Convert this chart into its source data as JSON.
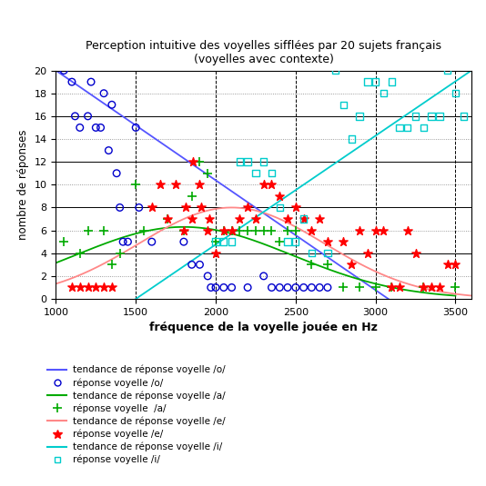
{
  "title_line1": "Perception intuitive des voyelles sifflées par 20 sujets français",
  "title_line2": "(voyelles avec contexte)",
  "xlabel": "fréquence de la voyelle jouée en Hz",
  "ylabel": "nombre de réponses",
  "xlim": [
    1000,
    3600
  ],
  "ylim": [
    0,
    20
  ],
  "xticks": [
    1000,
    1500,
    2000,
    2500,
    3000,
    3500
  ],
  "yticks": [
    0,
    2,
    4,
    6,
    8,
    10,
    12,
    14,
    16,
    18,
    20
  ],
  "color_o_line": "#5555ff",
  "color_o_pts": "#0000cc",
  "color_a": "#00aa00",
  "color_e_line": "#ff8888",
  "color_e_pts": "#ff0000",
  "color_i": "#00cccc",
  "scatter_o_x": [
    1050,
    1100,
    1120,
    1150,
    1200,
    1220,
    1250,
    1280,
    1300,
    1330,
    1350,
    1380,
    1400,
    1420,
    1450,
    1500,
    1520,
    1600,
    1800,
    1850,
    1900,
    1950,
    1970,
    2000,
    2050,
    2100,
    2200,
    2300,
    2350,
    2400,
    2450,
    2500,
    2550,
    2600,
    2650,
    2700
  ],
  "scatter_o_y": [
    20,
    19,
    16,
    15,
    16,
    19,
    15,
    15,
    18,
    13,
    17,
    11,
    8,
    5,
    5,
    15,
    8,
    5,
    5,
    3,
    3,
    2,
    1,
    1,
    1,
    1,
    1,
    2,
    1,
    1,
    1,
    1,
    1,
    1,
    1,
    1
  ],
  "scatter_a_x": [
    1050,
    1150,
    1200,
    1300,
    1350,
    1400,
    1500,
    1550,
    1700,
    1800,
    1850,
    1900,
    1950,
    2000,
    2050,
    2100,
    2150,
    2200,
    2250,
    2300,
    2350,
    2400,
    2450,
    2500,
    2600,
    2700,
    2800,
    2900,
    3000,
    3100,
    3300,
    3500
  ],
  "scatter_a_y": [
    5,
    4,
    6,
    6,
    3,
    4,
    10,
    6,
    7,
    6,
    9,
    12,
    11,
    5,
    6,
    6,
    6,
    6,
    6,
    6,
    6,
    5,
    6,
    6,
    3,
    3,
    1,
    1,
    1,
    1,
    1,
    1
  ],
  "scatter_e_x": [
    1100,
    1150,
    1200,
    1250,
    1300,
    1350,
    1600,
    1650,
    1700,
    1750,
    1800,
    1810,
    1850,
    1860,
    1900,
    1910,
    1950,
    1960,
    2000,
    2050,
    2100,
    2150,
    2200,
    2250,
    2300,
    2350,
    2400,
    2450,
    2500,
    2550,
    2600,
    2650,
    2700,
    2800,
    2850,
    2900,
    2950,
    3000,
    3050,
    3100,
    3150,
    3200,
    3250,
    3300,
    3350,
    3400,
    3450,
    3500
  ],
  "scatter_e_y": [
    1,
    1,
    1,
    1,
    1,
    1,
    8,
    10,
    7,
    10,
    6,
    8,
    7,
    12,
    10,
    8,
    6,
    7,
    4,
    6,
    6,
    7,
    8,
    7,
    10,
    10,
    9,
    7,
    8,
    7,
    6,
    7,
    5,
    5,
    3,
    6,
    4,
    6,
    6,
    1,
    1,
    6,
    4,
    1,
    1,
    1,
    3,
    3
  ],
  "scatter_i_x": [
    2000,
    2050,
    2100,
    2150,
    2200,
    2250,
    2300,
    2350,
    2400,
    2450,
    2500,
    2550,
    2600,
    2700,
    2750,
    2800,
    2850,
    2900,
    2950,
    3000,
    3050,
    3100,
    3150,
    3200,
    3250,
    3300,
    3350,
    3400,
    3450,
    3500,
    3550
  ],
  "scatter_i_y": [
    5,
    5,
    5,
    12,
    12,
    11,
    12,
    11,
    8,
    5,
    5,
    7,
    4,
    4,
    20,
    17,
    14,
    16,
    19,
    19,
    18,
    19,
    15,
    15,
    16,
    15,
    16,
    16,
    20,
    18,
    16
  ],
  "trend_o_x0": 1000,
  "trend_o_y0": 20.0,
  "trend_o_x1": 3080,
  "trend_o_y1": 0.0,
  "trend_a_peak_x": 1800,
  "trend_a_peak_y": 6.3,
  "trend_a_sigma": 680,
  "trend_e_peak_x": 2100,
  "trend_e_peak_y": 8.0,
  "trend_e_sigma": 580,
  "trend_i_x0": 1500,
  "trend_i_x1": 3600,
  "trend_i_y0": 0.0,
  "trend_i_y1": 20.0,
  "legend_items": [
    {
      "type": "line",
      "color": "#5555ff",
      "label": "tendance de réponse voyelle /o/"
    },
    {
      "type": "marker",
      "color": "#0000cc",
      "marker": "o",
      "label": "réponse voyelle /o/"
    },
    {
      "type": "line",
      "color": "#00aa00",
      "label": "tendance de réponse voyelle /a/"
    },
    {
      "type": "marker",
      "color": "#00aa00",
      "marker": "+",
      "label": "réponse voyelle  /a/"
    },
    {
      "type": "line",
      "color": "#ff8888",
      "label": "tendance de réponse voyelle /e/"
    },
    {
      "type": "marker",
      "color": "#ff0000",
      "marker": "*",
      "label": "réponse voyelle /e/"
    },
    {
      "type": "line",
      "color": "#00cccc",
      "label": "tendance de réponse voyelle /i/"
    },
    {
      "type": "marker",
      "color": "#00cccc",
      "marker": "s",
      "label": "réponse voyelle /i/"
    }
  ]
}
